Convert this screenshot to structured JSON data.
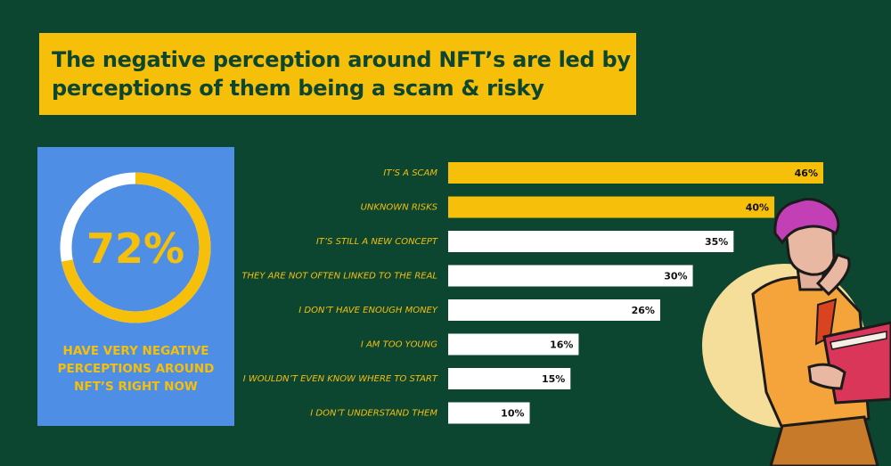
{
  "title": {
    "lines": [
      "The negative perception around NFT’s are led by",
      "perceptions of them being a scam & risky"
    ]
  },
  "stat": {
    "value_percent": 72,
    "label": "72%",
    "caption_lines": [
      "HAVE VERY NEGATIVE",
      "PERCEPTIONS AROUND",
      "NFT’S RIGHT NOW"
    ]
  },
  "colors": {
    "background": "#0c4530",
    "accent": "#f6bf0a",
    "card": "#4e8fe5",
    "bar_plain": "#ffffff"
  },
  "chart_data": {
    "type": "bar",
    "orientation": "horizontal",
    "categories": [
      "IT’S A SCAM",
      "UNKNOWN RISKS",
      "IT’S STILL A NEW CONCEPT",
      "THEY ARE NOT OFTEN LINKED TO THE REAL",
      "I DON’T HAVE ENOUGH MONEY",
      "I AM TOO YOUNG",
      "I WOULDN’T EVEN KNOW WHERE TO START",
      "I DON’T UNDERSTAND THEM"
    ],
    "values": [
      46,
      40,
      35,
      30,
      26,
      16,
      15,
      10
    ],
    "value_labels": [
      "46%",
      "40%",
      "35%",
      "30%",
      "26%",
      "16%",
      "15%",
      "10%"
    ],
    "highlight_count": 2,
    "xlim": [
      0,
      46
    ]
  }
}
